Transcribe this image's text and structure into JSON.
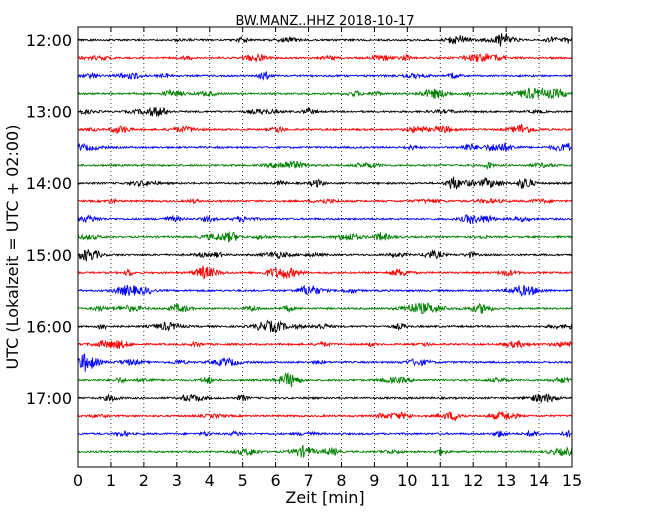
{
  "chart_data": {
    "type": "line",
    "title": "BW.MANZ..HHZ 2018-10-17",
    "xlabel": "Zeit  [min]",
    "ylabel": "UTC (Lokalzeit = UTC + 02:00)",
    "xlim": [
      0,
      15
    ],
    "x_ticks": [
      "0",
      "1",
      "2",
      "3",
      "4",
      "5",
      "6",
      "7",
      "8",
      "9",
      "10",
      "11",
      "12",
      "13",
      "14",
      "15"
    ],
    "y_ticks": [
      "12:00",
      "13:00",
      "14:00",
      "15:00",
      "16:00",
      "17:00"
    ],
    "grid": "vertical dotted",
    "trace_colors": [
      "#000000",
      "#ff0000",
      "#0000ff",
      "#008000"
    ],
    "trace_interval_min": 15,
    "start_time": "12:00",
    "end_time": "17:45",
    "trace_count": 24
  }
}
